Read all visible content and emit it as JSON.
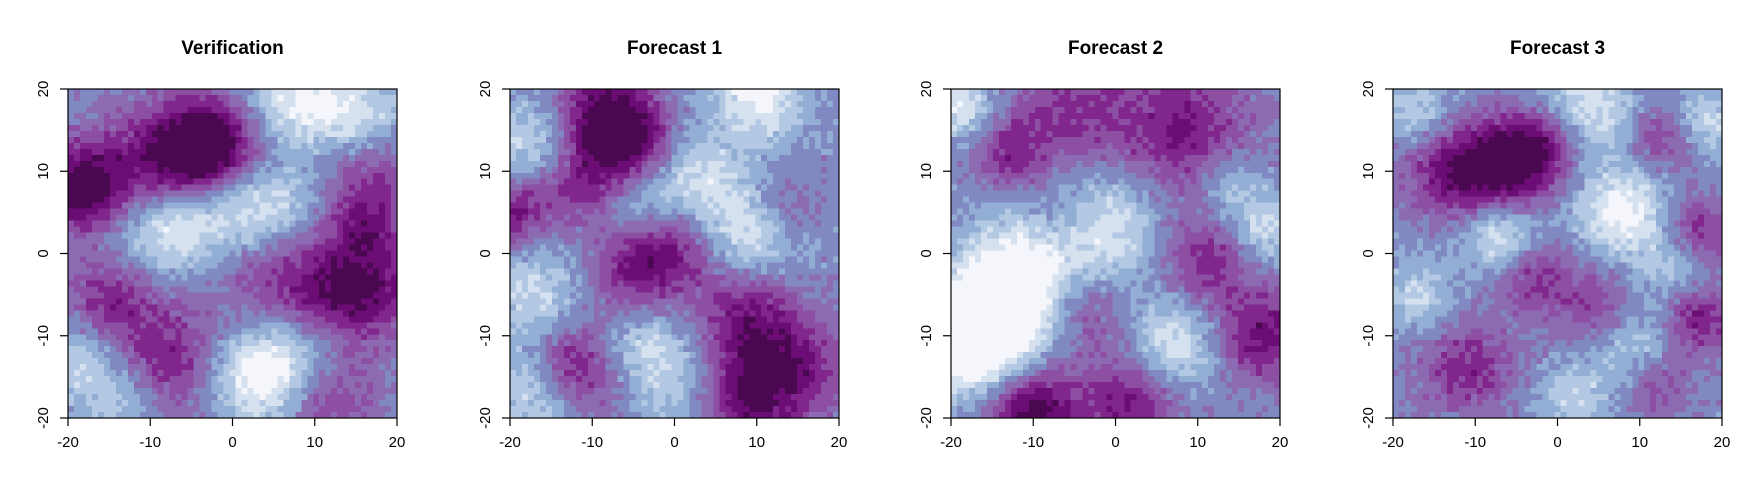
{
  "chart_data": [
    {
      "type": "heatmap",
      "title": "Verification",
      "xlabel": "",
      "ylabel": "",
      "xlim": [
        -20,
        20
      ],
      "ylim": [
        -20,
        20
      ],
      "x_ticks": [
        "-20",
        "-10",
        "0",
        "10",
        "20"
      ],
      "y_ticks": [
        "-20",
        "-10",
        "0",
        "10",
        "20"
      ],
      "field_blobs": [
        {
          "x": -3,
          "y": 13,
          "s": 4,
          "a": 1.7
        },
        {
          "x": -8,
          "y": 11,
          "s": 5,
          "a": 1.0
        },
        {
          "x": -17,
          "y": 9,
          "s": 4,
          "a": 1.0
        },
        {
          "x": -19,
          "y": 7,
          "s": 3,
          "a": 0.8
        },
        {
          "x": 17,
          "y": 10,
          "s": 4,
          "a": 0.9
        },
        {
          "x": 16,
          "y": 3,
          "s": 3,
          "a": 0.8
        },
        {
          "x": 11,
          "y": -6,
          "s": 5,
          "a": 1.1
        },
        {
          "x": 17,
          "y": -4,
          "s": 4,
          "a": 0.9
        },
        {
          "x": -15,
          "y": -6,
          "s": 4,
          "a": 0.9
        },
        {
          "x": -8,
          "y": -13,
          "s": 5,
          "a": 0.9
        },
        {
          "x": 12,
          "y": -18,
          "s": 4,
          "a": 0.7
        },
        {
          "x": 4,
          "y": 0,
          "s": 5,
          "a": 0.6
        },
        {
          "x": 8,
          "y": 19,
          "s": 4,
          "a": -1.1
        },
        {
          "x": 16,
          "y": 16,
          "s": 4,
          "a": -0.9
        },
        {
          "x": -8,
          "y": 3,
          "s": 4,
          "a": -1.1
        },
        {
          "x": -1,
          "y": 5,
          "s": 4,
          "a": -0.8
        },
        {
          "x": 5,
          "y": 5,
          "s": 4,
          "a": -0.9
        },
        {
          "x": 3,
          "y": -15,
          "s": 4,
          "a": -1.3
        },
        {
          "x": 9,
          "y": -11,
          "s": 4,
          "a": -0.8
        },
        {
          "x": -18,
          "y": -13,
          "s": 4,
          "a": -0.8
        },
        {
          "x": -13,
          "y": -18,
          "s": 3,
          "a": -0.6
        }
      ]
    },
    {
      "type": "heatmap",
      "title": "Forecast 1",
      "xlabel": "",
      "ylabel": "",
      "xlim": [
        -20,
        20
      ],
      "ylim": [
        -20,
        20
      ],
      "x_ticks": [
        "-20",
        "-10",
        "0",
        "10",
        "20"
      ],
      "y_ticks": [
        "-20",
        "-10",
        "0",
        "10",
        "20"
      ],
      "field_blobs": [
        {
          "x": -6,
          "y": 14,
          "s": 4,
          "a": 1.6
        },
        {
          "x": -10,
          "y": 17,
          "s": 4,
          "a": 1.0
        },
        {
          "x": -19,
          "y": 5,
          "s": 3,
          "a": 1.0
        },
        {
          "x": -12,
          "y": 8,
          "s": 3,
          "a": 0.8
        },
        {
          "x": -1,
          "y": 1,
          "s": 4,
          "a": 1.0
        },
        {
          "x": -5,
          "y": -3,
          "s": 4,
          "a": 0.8
        },
        {
          "x": -12,
          "y": -14,
          "s": 4,
          "a": 1.2
        },
        {
          "x": 13,
          "y": -14,
          "s": 5,
          "a": 1.3
        },
        {
          "x": 7,
          "y": -18,
          "s": 4,
          "a": 1.0
        },
        {
          "x": 8,
          "y": -7,
          "s": 4,
          "a": 0.8
        },
        {
          "x": 13,
          "y": 6,
          "s": 3,
          "a": 0.6
        },
        {
          "x": 10,
          "y": 19,
          "s": 4,
          "a": -1.1
        },
        {
          "x": -17,
          "y": 14,
          "s": 4,
          "a": -0.8
        },
        {
          "x": 2,
          "y": 9,
          "s": 4,
          "a": -0.9
        },
        {
          "x": -4,
          "y": 5,
          "s": 3,
          "a": -0.6
        },
        {
          "x": 9,
          "y": 3,
          "s": 4,
          "a": -1.0
        },
        {
          "x": -17,
          "y": -5,
          "s": 4,
          "a": -0.8
        },
        {
          "x": -4,
          "y": -11,
          "s": 4,
          "a": -0.8
        },
        {
          "x": 2,
          "y": -17,
          "s": 4,
          "a": -0.7
        },
        {
          "x": -17,
          "y": -17,
          "s": 4,
          "a": -0.9
        }
      ]
    },
    {
      "type": "heatmap",
      "title": "Forecast 2",
      "xlabel": "",
      "ylabel": "",
      "xlim": [
        -20,
        20
      ],
      "ylim": [
        -20,
        20
      ],
      "x_ticks": [
        "-20",
        "-10",
        "0",
        "10",
        "20"
      ],
      "y_ticks": [
        "-20",
        "-10",
        "0",
        "10",
        "20"
      ],
      "field_blobs": [
        {
          "x": -10,
          "y": -19,
          "s": 4,
          "a": 1.7
        },
        {
          "x": 2,
          "y": -18,
          "s": 4,
          "a": 1.1
        },
        {
          "x": 8,
          "y": 15,
          "s": 6,
          "a": 1.0
        },
        {
          "x": -6,
          "y": 17,
          "s": 5,
          "a": 0.8
        },
        {
          "x": -13,
          "y": 12,
          "s": 3,
          "a": 0.8
        },
        {
          "x": 18,
          "y": -10,
          "s": 4,
          "a": 1.2
        },
        {
          "x": 11,
          "y": -1,
          "s": 4,
          "a": 0.9
        },
        {
          "x": -4,
          "y": -7,
          "s": 4,
          "a": 0.8
        },
        {
          "x": -6,
          "y": 4,
          "s": 3,
          "a": 0.6
        },
        {
          "x": -14,
          "y": -7,
          "s": 6,
          "a": -1.5
        },
        {
          "x": -17,
          "y": -12,
          "s": 4,
          "a": -1.0
        },
        {
          "x": -2,
          "y": 3,
          "s": 5,
          "a": -1.1
        },
        {
          "x": -19,
          "y": 18,
          "s": 3,
          "a": -1.0
        },
        {
          "x": 7,
          "y": -11,
          "s": 4,
          "a": -1.0
        },
        {
          "x": 18,
          "y": 3,
          "s": 3,
          "a": -0.8
        },
        {
          "x": 14,
          "y": 8,
          "s": 3,
          "a": -0.6
        },
        {
          "x": -11,
          "y": -2,
          "s": 4,
          "a": -0.7
        }
      ]
    },
    {
      "type": "heatmap",
      "title": "Forecast 3",
      "xlabel": "",
      "ylabel": "",
      "xlim": [
        -20,
        20
      ],
      "ylim": [
        -20,
        20
      ],
      "x_ticks": [
        "-20",
        "-10",
        "0",
        "10",
        "20"
      ],
      "y_ticks": [
        "-20",
        "-10",
        "0",
        "10",
        "20"
      ],
      "field_blobs": [
        {
          "x": -6,
          "y": 11,
          "s": 4,
          "a": 1.4
        },
        {
          "x": -13,
          "y": 10,
          "s": 4,
          "a": 1.1
        },
        {
          "x": -2,
          "y": 13,
          "s": 3,
          "a": 0.9
        },
        {
          "x": 17,
          "y": 3,
          "s": 3,
          "a": 0.9
        },
        {
          "x": 13,
          "y": 14,
          "s": 3,
          "a": 0.8
        },
        {
          "x": 17,
          "y": -8,
          "s": 3,
          "a": 1.1
        },
        {
          "x": 5,
          "y": -7,
          "s": 4,
          "a": 0.8
        },
        {
          "x": -11,
          "y": -14,
          "s": 4,
          "a": 0.9
        },
        {
          "x": -3,
          "y": -3,
          "s": 3,
          "a": 0.8
        },
        {
          "x": 12,
          "y": -16,
          "s": 3,
          "a": 0.7
        },
        {
          "x": 8,
          "y": 5,
          "s": 4,
          "a": -1.2
        },
        {
          "x": -7,
          "y": 2,
          "s": 3,
          "a": -1.0
        },
        {
          "x": 4,
          "y": 18,
          "s": 4,
          "a": -0.9
        },
        {
          "x": 18,
          "y": 16,
          "s": 3,
          "a": -0.8
        },
        {
          "x": -17,
          "y": 17,
          "s": 3,
          "a": -0.7
        },
        {
          "x": 9,
          "y": -11,
          "s": 4,
          "a": -0.8
        },
        {
          "x": -17,
          "y": -5,
          "s": 3,
          "a": -0.7
        },
        {
          "x": 2,
          "y": -17,
          "s": 3,
          "a": -0.7
        },
        {
          "x": 14,
          "y": -2,
          "s": 3,
          "a": -0.6
        }
      ]
    }
  ],
  "palette": [
    "#F5F6FB",
    "#D6E1EF",
    "#B3C9E3",
    "#93AED5",
    "#8189C2",
    "#8D6BB3",
    "#8C4FA2",
    "#81268C",
    "#6B0D74",
    "#4A0850"
  ],
  "colors": {
    "axis": "#000000",
    "background": "#ffffff"
  }
}
